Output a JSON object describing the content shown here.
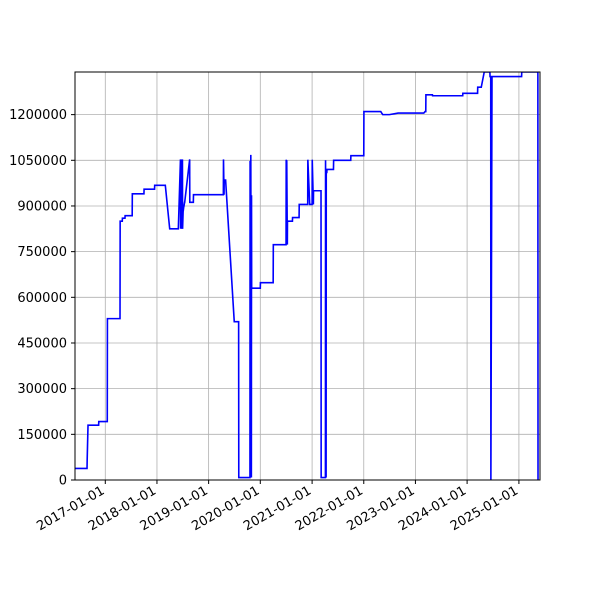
{
  "chart_data": {
    "type": "line",
    "title": "",
    "xlabel": "",
    "ylabel": "",
    "xlim": [
      "2016-06-01",
      "2025-05-30"
    ],
    "ylim": [
      0,
      1340000
    ],
    "grid": true,
    "line_color": "#0000ff",
    "x_ticks": [
      "2017-01-01",
      "2018-01-01",
      "2019-01-01",
      "2020-01-01",
      "2021-01-01",
      "2022-01-01",
      "2023-01-01",
      "2024-01-01",
      "2025-01-01"
    ],
    "y_ticks": [
      0,
      150000,
      300000,
      450000,
      600000,
      750000,
      900000,
      1050000,
      1200000
    ],
    "y_tick_labels": [
      "0",
      "150000",
      "300000",
      "450000",
      "600000",
      "750000",
      "900000",
      "1050000",
      "1200000"
    ],
    "series": [
      {
        "x": [
          "2016-06-01",
          "2016-08-25",
          "2016-08-26",
          "2016-09-01",
          "2016-09-05",
          "2016-11-15",
          "2016-11-16",
          "2017-01-15",
          "2017-01-16",
          "2017-04-15",
          "2017-04-16",
          "2017-05-01",
          "2017-05-02",
          "2017-05-20",
          "2017-05-21",
          "2017-07-10",
          "2017-07-11",
          "2017-10-01",
          "2017-10-02",
          "2017-12-15",
          "2017-12-16",
          "2018-03-01",
          "2018-04-01",
          "2018-06-01",
          "2018-06-16",
          "2018-06-17",
          "2018-06-20",
          "2018-06-21",
          "2018-06-25",
          "2018-06-26",
          "2018-06-30",
          "2018-07-01",
          "2018-07-05",
          "2018-07-06",
          "2018-07-10",
          "2018-07-11",
          "2018-07-15",
          "2018-07-16",
          "2018-08-20",
          "2018-08-21",
          "2018-09-15",
          "2018-09-16",
          "2018-09-20",
          "2018-10-01",
          "2018-10-02",
          "2019-04-15",
          "2019-04-16",
          "2019-04-20",
          "2019-04-21",
          "2019-05-01",
          "2019-07-01",
          "2019-07-02",
          "2019-08-01",
          "2019-08-02",
          "2019-10-20",
          "2019-10-21",
          "2019-10-25",
          "2019-10-26",
          "2019-10-30",
          "2019-10-31",
          "2019-11-01",
          "2019-11-02",
          "2019-11-05",
          "2019-11-06",
          "2020-01-01",
          "2020-01-02",
          "2020-04-01",
          "2020-04-02",
          "2020-07-01",
          "2020-07-02",
          "2020-07-05",
          "2020-07-06",
          "2020-07-10",
          "2020-07-11",
          "2020-08-15",
          "2020-08-16",
          "2020-10-01",
          "2020-10-02",
          "2020-12-01",
          "2020-12-02",
          "2020-12-15",
          "2020-12-16",
          "2021-01-01",
          "2021-01-02",
          "2021-01-10",
          "2021-01-11",
          "2021-03-01",
          "2021-03-05",
          "2021-03-06",
          "2021-04-05",
          "2021-04-06",
          "2021-04-10",
          "2021-04-11",
          "2021-04-15",
          "2021-04-16",
          "2021-06-01",
          "2021-06-02",
          "2021-07-01",
          "2021-07-02",
          "2021-10-01",
          "2021-10-02",
          "2022-01-01",
          "2022-01-02",
          "2022-05-01",
          "2022-05-15",
          "2022-07-01",
          "2022-09-01",
          "2022-09-15",
          "2022-10-15",
          "2023-03-01",
          "2023-03-10",
          "2023-03-15",
          "2023-03-16",
          "2023-05-01",
          "2023-05-02",
          "2023-09-30",
          "2023-10-01",
          "2023-12-01",
          "2023-12-02",
          "2024-03-15",
          "2024-03-16",
          "2024-04-01",
          "2024-04-10",
          "2024-05-01",
          "2024-06-10",
          "2024-06-11",
          "2024-06-16",
          "2024-06-17",
          "2024-06-25",
          "2024-06-26",
          "2025-01-01",
          "2025-01-20",
          "2025-01-21",
          "2025-05-01",
          "2025-05-15",
          "2025-05-16"
        ],
        "y": [
          38000,
          38000,
          65000,
          180000,
          180000,
          180000,
          192000,
          192000,
          530000,
          530000,
          850000,
          850000,
          860000,
          860000,
          868000,
          868000,
          940000,
          940000,
          955000,
          955000,
          968000,
          968000,
          825000,
          825000,
          1053000,
          825000,
          1053000,
          825000,
          1053000,
          825000,
          1053000,
          825000,
          885000,
          885000,
          900000,
          900000,
          912000,
          912000,
          1053000,
          912000,
          912000,
          937000,
          937000,
          937000,
          937000,
          937000,
          1053000,
          937000,
          985000,
          985000,
          520000,
          520000,
          520000,
          8000,
          8000,
          1048000,
          8000,
          1068000,
          8000,
          935000,
          630000,
          630000,
          630000,
          630000,
          630000,
          648000,
          648000,
          773000,
          773000,
          1052000,
          773000,
          1050000,
          773000,
          850000,
          850000,
          862000,
          862000,
          905000,
          905000,
          1052000,
          905000,
          905000,
          905000,
          1052000,
          905000,
          950000,
          950000,
          950000,
          8000,
          8000,
          1050000,
          8000,
          1010000,
          1010000,
          1020000,
          1020000,
          1050000,
          1050000,
          1050000,
          1050000,
          1065000,
          1065000,
          1210000,
          1210000,
          1200000,
          1200000,
          1205000,
          1205000,
          1205000,
          1205000,
          1210000,
          1210000,
          1265000,
          1265000,
          1262000,
          1262000,
          1262000,
          1262000,
          1270000,
          1270000,
          1290000,
          1290000,
          1290000,
          1340000,
          1340000,
          1325000,
          1325000,
          0,
          1325000,
          1325000,
          1325000,
          1325000,
          1340000,
          1340000,
          1340000,
          0
        ]
      }
    ]
  }
}
